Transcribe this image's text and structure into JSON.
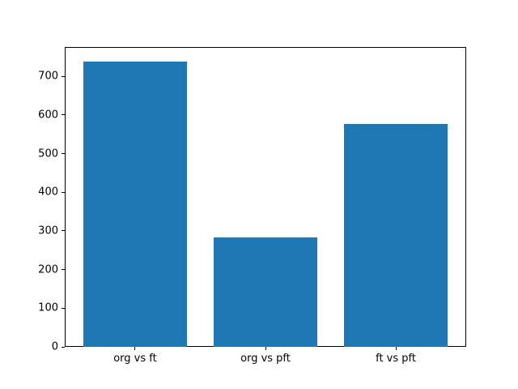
{
  "figure": {
    "background": "#ffffff",
    "spine_color": "#000000",
    "tick_color": "#000000",
    "text_color": "#000000"
  },
  "chart_data": {
    "type": "bar",
    "title": "",
    "xlabel": "",
    "ylabel": "",
    "categories": [
      "org vs ft",
      "org vs pft",
      "ft vs pft"
    ],
    "values": [
      739,
      283,
      577
    ],
    "x_positions": [
      0,
      1,
      2
    ],
    "bar_color": "#1f77b4",
    "bar_width_fraction": 0.8,
    "xlim": [
      -0.54,
      2.54
    ],
    "ylim": [
      0,
      776
    ],
    "yticks": [
      0,
      100,
      200,
      300,
      400,
      500,
      600,
      700
    ],
    "grid": false,
    "legend": null
  }
}
